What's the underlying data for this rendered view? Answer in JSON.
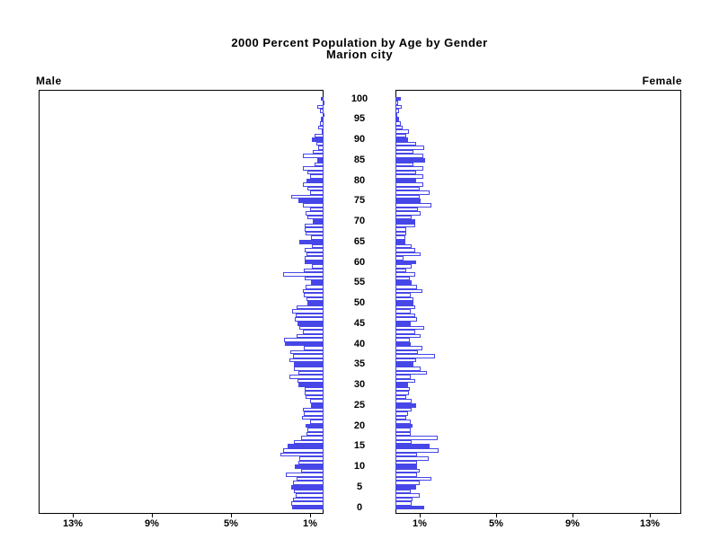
{
  "title": {
    "line1": "2000 Percent Population by Age by Gender",
    "line2": "Marion city"
  },
  "panels": {
    "left_label": "Male",
    "right_label": "Female"
  },
  "colors": {
    "bar_blue": "#4747e8",
    "text": "#000000",
    "background": "#ffffff"
  },
  "chart_data": {
    "type": "bar",
    "subtype": "population-pyramid",
    "title": "2000 Percent Population by Age by Gender",
    "subtitle": "Marion city",
    "orientation": "horizontal",
    "age_axis": {
      "min": 0,
      "max": 100,
      "tick_step": 5,
      "tick_labels": [
        "0",
        "5",
        "10",
        "15",
        "20",
        "25",
        "30",
        "35",
        "40",
        "45",
        "50",
        "55",
        "60",
        "65",
        "70",
        "75",
        "80",
        "85",
        "90",
        "95",
        "100"
      ]
    },
    "percent_axis": {
      "unit": "%",
      "xlim": [
        0,
        14.8
      ],
      "male_tick_labels": [
        "13%",
        "9%",
        "5%",
        "1%"
      ],
      "male_tick_values": [
        13,
        9,
        5,
        1
      ],
      "female_tick_labels": [
        "1%",
        "5%",
        "9%",
        "13%"
      ],
      "female_tick_values": [
        1,
        5,
        9,
        13
      ],
      "grid": false
    },
    "bar_style_note": "one bar per single year of age; ages divisible by 5 are solid blue, others white with blue outline",
    "series": [
      {
        "name": "Male",
        "side": "left",
        "ages": "0-100 ascending",
        "values": [
          1.64,
          1.67,
          1.59,
          1.43,
          1.53,
          1.67,
          1.6,
          1.4,
          1.95,
          1.15,
          1.5,
          1.3,
          1.25,
          2.26,
          2.1,
          1.88,
          1.56,
          1.17,
          0.9,
          0.86,
          0.93,
          0.7,
          1.12,
          1.04,
          1.09,
          0.65,
          0.7,
          0.93,
          0.97,
          0.97,
          1.32,
          1.37,
          1.79,
          1.32,
          1.53,
          1.56,
          1.79,
          1.59,
          1.71,
          1.04,
          2.02,
          2.06,
          1.4,
          1.09,
          1.25,
          1.37,
          1.48,
          1.43,
          1.64,
          1.4,
          0.86,
          0.9,
          1.01,
          1.09,
          0.93,
          0.65,
          0.98,
          2.1,
          1.04,
          0.62,
          0.98,
          0.98,
          0.9,
          0.97,
          0.62,
          1.28,
          0.65,
          0.93,
          1.0,
          0.97,
          0.55,
          0.86,
          0.93,
          0.7,
          1.09,
          1.32,
          1.67,
          0.7,
          0.83,
          1.09,
          0.89,
          0.7,
          0.83,
          1.09,
          0.47,
          0.31,
          1.09,
          0.55,
          0.26,
          0.39,
          0.62,
          0.45,
          0.11,
          0.26,
          0.17,
          0.16,
          0.05,
          0.2,
          0.31,
          0.05,
          0.16
        ]
      },
      {
        "name": "Female",
        "side": "right",
        "ages": "0-100 ascending",
        "values": [
          1.48,
          0.86,
          0.9,
          1.28,
          0.78,
          1.09,
          1.25,
          1.87,
          1.14,
          1.25,
          1.14,
          1.14,
          1.74,
          1.14,
          2.26,
          1.79,
          0.86,
          2.18,
          0.78,
          0.78,
          0.89,
          0.78,
          0.58,
          0.67,
          0.86,
          1.09,
          0.86,
          0.58,
          0.7,
          0.75,
          0.67,
          1.04,
          0.78,
          1.64,
          1.29,
          0.93,
          1.09,
          2.07,
          1.17,
          1.4,
          0.78,
          0.75,
          1.29,
          1.01,
          1.48,
          0.78,
          1.14,
          1.04,
          0.78,
          1.05,
          0.93,
          0.95,
          0.78,
          1.4,
          1.14,
          0.83,
          0.75,
          1.04,
          0.58,
          0.86,
          1.09,
          0.42,
          1.29,
          1.04,
          0.86,
          0.51,
          0.51,
          0.55,
          0.58,
          1.04,
          1.01,
          0.86,
          1.32,
          1.17,
          1.87,
          1.32,
          1.28,
          1.79,
          1.28,
          1.45,
          1.09,
          1.45,
          1.09,
          1.43,
          0.93,
          1.56,
          1.43,
          0.93,
          1.48,
          1.09,
          0.67,
          0.55,
          0.7,
          0.39,
          0.26,
          0.2,
          0.05,
          0.19,
          0.34,
          0.12,
          0.26
        ]
      }
    ]
  }
}
